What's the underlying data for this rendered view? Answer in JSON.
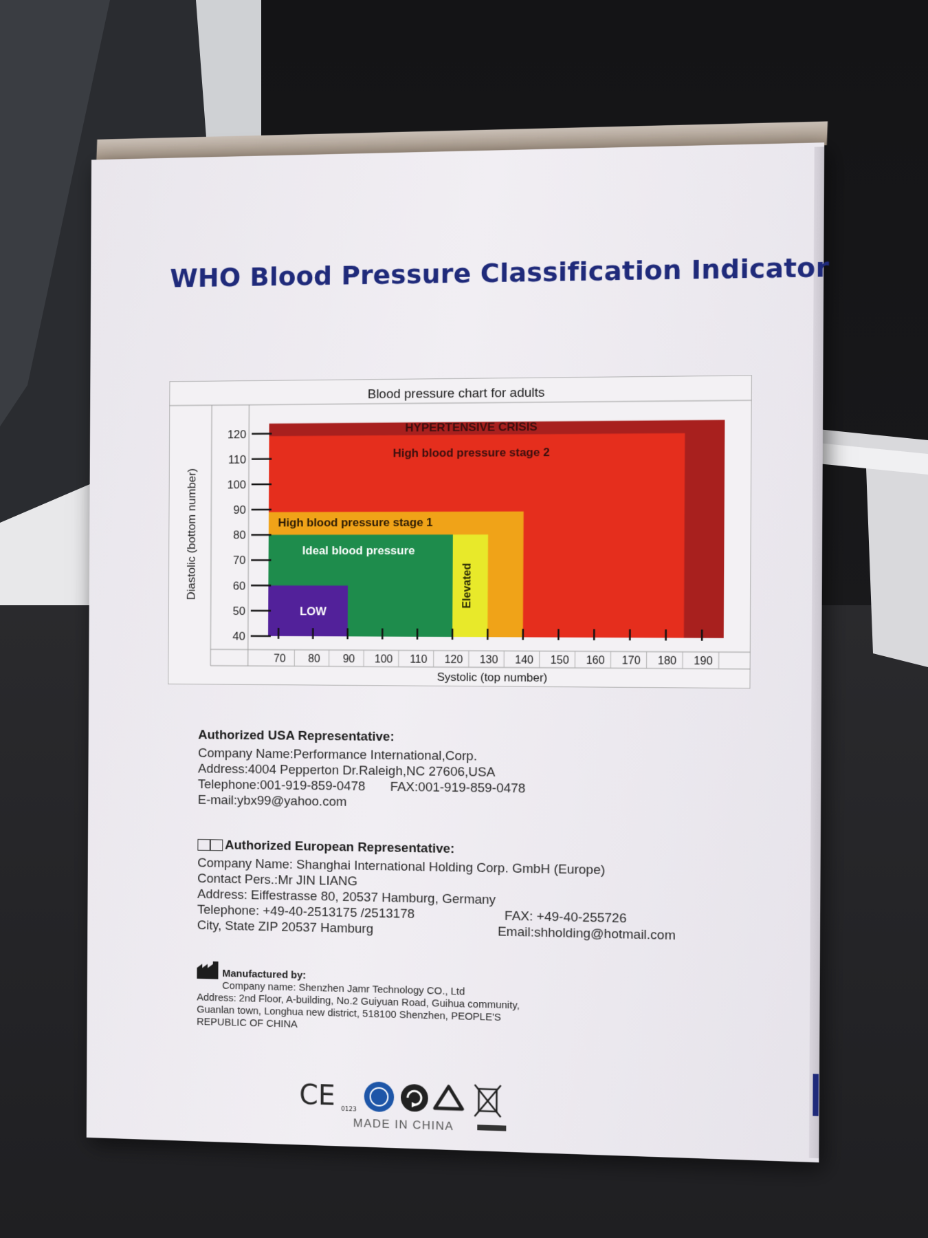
{
  "title": "WHO Blood Pressure Classification Indicator",
  "chart_data": {
    "type": "area",
    "title": "Blood pressure chart for adults",
    "xlabel": "Systolic (top number)",
    "ylabel": "Diastolic (bottom number)",
    "x_ticks": [
      70,
      80,
      90,
      100,
      110,
      120,
      130,
      140,
      150,
      160,
      170,
      180,
      190
    ],
    "y_ticks": [
      40,
      50,
      60,
      70,
      80,
      90,
      100,
      110,
      120
    ],
    "xlim": [
      67,
      196
    ],
    "ylim": [
      40,
      125
    ],
    "zones": [
      {
        "label": "HYPERTENSIVE CRISIS",
        "x": [
          67,
          196
        ],
        "y": [
          40,
          124
        ],
        "color": "#a8201e"
      },
      {
        "label": "High blood pressure stage 2",
        "x": [
          67,
          185
        ],
        "y": [
          40,
          119
        ],
        "color": "#e52e1d"
      },
      {
        "label": "High blood pressure stage 1",
        "x": [
          67,
          140
        ],
        "y": [
          40,
          89
        ],
        "color": "#f0a318"
      },
      {
        "label": "Elevated",
        "x": [
          120,
          130
        ],
        "y": [
          40,
          80
        ],
        "color": "#e8e92a"
      },
      {
        "label": "Ideal blood pressure",
        "x": [
          67,
          120
        ],
        "y": [
          40,
          80
        ],
        "color": "#1e8c4c"
      },
      {
        "label": "LOW",
        "x": [
          67,
          90
        ],
        "y": [
          40,
          60
        ],
        "color": "#52219a"
      }
    ]
  },
  "usa": {
    "heading": "Authorized USA Representative:",
    "company": "Company Name:Performance International,Corp.",
    "address": "Address:4004 Pepperton Dr.Raleigh,NC 27606,USA",
    "telephone": "Telephone:001-919-859-0478",
    "fax": "FAX:001-919-859-0478",
    "email": "E-mail:ybx99@yahoo.com"
  },
  "eu": {
    "heading": "Authorized European Representative:",
    "company": "Company Name: Shanghai International Holding Corp. GmbH (Europe)",
    "contact": "Contact Pers.:Mr JIN LIANG",
    "address": "Address: Eiffestrasse 80, 20537  Hamburg,  Germany",
    "telephone": "Telephone: +49-40-2513175 /2513178",
    "fax": "FAX: +49-40-255726",
    "city": "City, State ZIP 20537 Hamburg",
    "email": "Email:shholding@hotmail.com"
  },
  "manufacturer": {
    "heading": "Manufactured by:",
    "company": "Company name: Shenzhen Jamr Technology CO., Ltd",
    "address1": "Address: 2nd Floor, A-building, No.2 Guiyuan Road, Guihua community,",
    "address2": "Guanlan town, Longhua new district, 518100 Shenzhen, PEOPLE'S",
    "address3": "REPUBLIC OF CHINA"
  },
  "marks": {
    "ce": "CE",
    "ce_number": "0123",
    "made_in": "MADE IN CHINA",
    "icons": [
      "ce-mark-icon",
      "tuv-certification-icon",
      "recycle-arrow-icon",
      "recycling-symbol-icon",
      "weee-crossed-bin-icon"
    ]
  }
}
